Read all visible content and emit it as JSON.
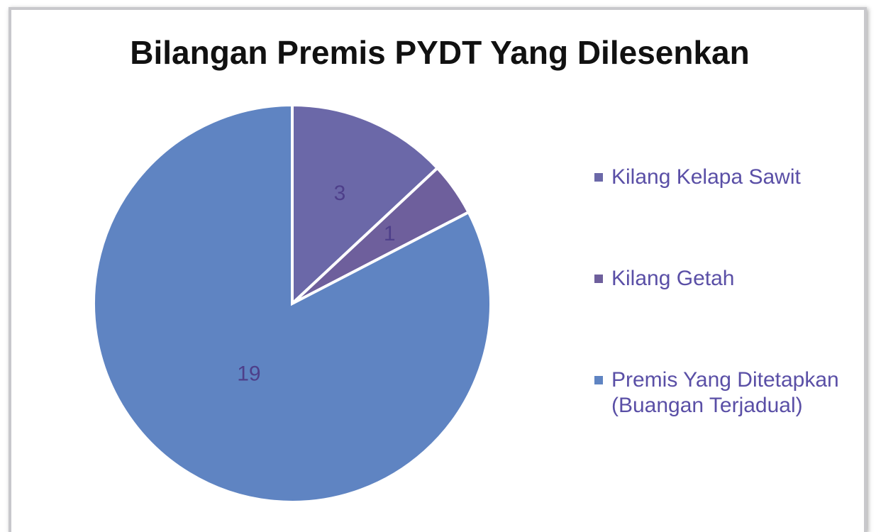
{
  "chart_data": {
    "type": "pie",
    "title": "Bilangan Premis PYDT Yang Dilesenkan",
    "categories": [
      "Kilang Kelapa Sawit",
      "Kilang Getah",
      "Premis Yang Ditetapkan (Buangan Terjadual)"
    ],
    "values": [
      3,
      1,
      19
    ],
    "colors": [
      "#6b68a8",
      "#6e5f9c",
      "#5f84c2"
    ],
    "legend": "right"
  }
}
